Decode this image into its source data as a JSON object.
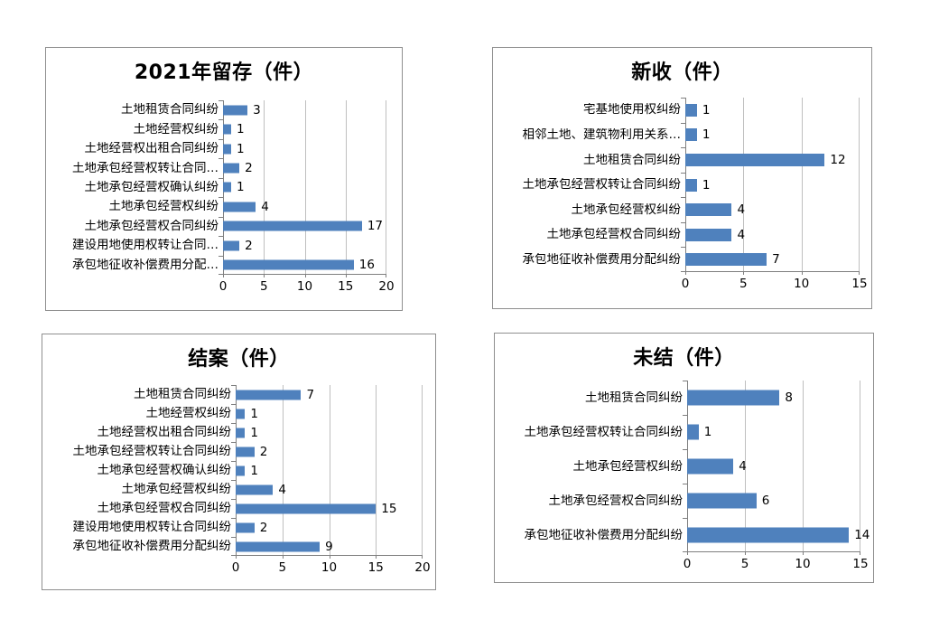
{
  "page": {
    "background_color": "#ffffff",
    "accent_bar_color": "#4F81BD",
    "unit_suffix": "（件）"
  },
  "chart_data": [
    {
      "type": "bar",
      "orientation": "horizontal",
      "title": "2021年留存（件）",
      "categories": [
        "土地租赁合同纠纷",
        "土地经营权纠纷",
        "土地经营权出租合同纠纷",
        "土地承包经营权转让合同…",
        "土地承包经营权确认纠纷",
        "土地承包经营权纠纷",
        "土地承包经营权合同纠纷",
        "建设用地使用权转让合同…",
        "承包地征收补偿费用分配…"
      ],
      "values": [
        3,
        1,
        1,
        2,
        1,
        4,
        17,
        2,
        16
      ],
      "xlim": [
        0,
        20
      ],
      "xticks": [
        0,
        5,
        10,
        15,
        20
      ],
      "grid": true,
      "data_labels": true,
      "legend": "none",
      "bar_color": "#4F81BD"
    },
    {
      "type": "bar",
      "orientation": "horizontal",
      "title": "新收（件）",
      "categories": [
        "宅基地使用权纠纷",
        "相邻土地、建筑物利用关系…",
        "土地租赁合同纠纷",
        "土地承包经营权转让合同纠纷",
        "土地承包经营权纠纷",
        "土地承包经营权合同纠纷",
        "承包地征收补偿费用分配纠纷"
      ],
      "values": [
        1,
        1,
        12,
        1,
        4,
        4,
        7
      ],
      "xlim": [
        0,
        15
      ],
      "xticks": [
        0,
        5,
        10,
        15
      ],
      "grid": true,
      "data_labels": true,
      "legend": "none",
      "bar_color": "#4F81BD"
    },
    {
      "type": "bar",
      "orientation": "horizontal",
      "title": "结案（件）",
      "categories": [
        "土地租赁合同纠纷",
        "土地经营权纠纷",
        "土地经营权出租合同纠纷",
        "土地承包经营权转让合同纠纷",
        "土地承包经营权确认纠纷",
        "土地承包经营权纠纷",
        "土地承包经营权合同纠纷",
        "建设用地使用权转让合同纠纷",
        "承包地征收补偿费用分配纠纷"
      ],
      "values": [
        7,
        1,
        1,
        2,
        1,
        4,
        15,
        2,
        9
      ],
      "xlim": [
        0,
        20
      ],
      "xticks": [
        0,
        5,
        10,
        15,
        20
      ],
      "grid": true,
      "data_labels": true,
      "legend": "none",
      "bar_color": "#4F81BD"
    },
    {
      "type": "bar",
      "orientation": "horizontal",
      "title": "未结（件）",
      "categories": [
        "土地租赁合同纠纷",
        "土地承包经营权转让合同纠纷",
        "土地承包经营权纠纷",
        "土地承包经营权合同纠纷",
        "承包地征收补偿费用分配纠纷"
      ],
      "values": [
        8,
        1,
        4,
        6,
        14
      ],
      "xlim": [
        0,
        15
      ],
      "xticks": [
        0,
        5,
        10,
        15
      ],
      "grid": true,
      "data_labels": true,
      "legend": "none",
      "bar_color": "#4F81BD"
    }
  ]
}
